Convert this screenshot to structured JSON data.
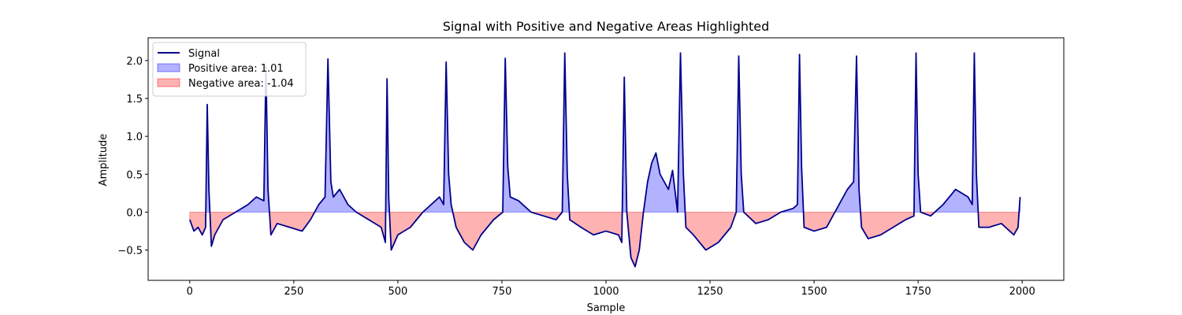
{
  "chart_data": {
    "type": "line",
    "title": "Signal with Positive and Negative Areas Highlighted",
    "xlabel": "Sample",
    "ylabel": "Amplitude",
    "xlim": [
      -100,
      2100
    ],
    "ylim": [
      -0.9,
      2.3
    ],
    "xticks": [
      0,
      250,
      500,
      750,
      1000,
      1250,
      1500,
      1750,
      2000
    ],
    "yticks": [
      -0.5,
      0.0,
      0.5,
      1.0,
      1.5,
      2.0
    ],
    "xtick_labels": [
      "0",
      "250",
      "500",
      "750",
      "1000",
      "1250",
      "1500",
      "1750",
      "2000"
    ],
    "ytick_labels": [
      "−0.5",
      "0.0",
      "0.5",
      "1.0",
      "1.5",
      "2.0"
    ],
    "grid": false,
    "legend_position": "top-left",
    "legend": [
      {
        "label": "Signal",
        "kind": "line",
        "color": "#00008b"
      },
      {
        "label": "Positive area: 1.01",
        "kind": "patch",
        "color": "#0000ff"
      },
      {
        "label": "Negative area: -1.04",
        "kind": "patch",
        "color": "#ff0000"
      }
    ],
    "series": {
      "name": "Signal",
      "color": "#00008b",
      "positive_fill": "#0000ff",
      "negative_fill": "#ff0000",
      "fill_alpha": 0.3,
      "x": [
        0,
        10,
        20,
        30,
        38,
        42,
        46,
        52,
        60,
        80,
        110,
        140,
        160,
        178,
        183,
        188,
        195,
        210,
        240,
        270,
        290,
        310,
        325,
        332,
        339,
        345,
        360,
        380,
        400,
        430,
        460,
        470,
        474,
        478,
        484,
        500,
        530,
        560,
        580,
        600,
        610,
        616,
        622,
        628,
        640,
        660,
        680,
        700,
        730,
        752,
        758,
        764,
        770,
        790,
        820,
        850,
        880,
        895,
        901,
        907,
        913,
        940,
        970,
        1000,
        1030,
        1038,
        1044,
        1050,
        1060,
        1070,
        1080,
        1090,
        1100,
        1110,
        1120,
        1130,
        1150,
        1160,
        1172,
        1179,
        1186,
        1192,
        1210,
        1240,
        1270,
        1300,
        1313,
        1319,
        1325,
        1331,
        1360,
        1390,
        1420,
        1450,
        1460,
        1465,
        1470,
        1476,
        1500,
        1530,
        1560,
        1580,
        1595,
        1602,
        1608,
        1614,
        1630,
        1660,
        1690,
        1720,
        1740,
        1745,
        1750,
        1756,
        1780,
        1810,
        1840,
        1870,
        1880,
        1885,
        1890,
        1896,
        1920,
        1950,
        1980,
        1990,
        1995
      ],
      "y": [
        -0.1,
        -0.25,
        -0.2,
        -0.3,
        -0.2,
        1.42,
        0.3,
        -0.45,
        -0.3,
        -0.1,
        0.0,
        0.1,
        0.2,
        0.15,
        1.92,
        0.3,
        -0.3,
        -0.15,
        -0.2,
        -0.25,
        -0.1,
        0.1,
        0.2,
        2.02,
        0.4,
        0.2,
        0.3,
        0.1,
        0.0,
        -0.1,
        -0.2,
        -0.4,
        1.76,
        0.2,
        -0.5,
        -0.3,
        -0.2,
        0.0,
        0.1,
        0.2,
        0.1,
        1.98,
        0.5,
        0.1,
        -0.2,
        -0.4,
        -0.5,
        -0.3,
        -0.1,
        0.0,
        2.03,
        0.6,
        0.2,
        0.15,
        0.0,
        -0.05,
        -0.1,
        0.0,
        2.1,
        0.5,
        -0.1,
        -0.2,
        -0.3,
        -0.25,
        -0.3,
        -0.4,
        1.78,
        0.0,
        -0.6,
        -0.72,
        -0.5,
        0.0,
        0.4,
        0.65,
        0.78,
        0.5,
        0.3,
        0.55,
        0.0,
        2.1,
        0.5,
        -0.2,
        -0.3,
        -0.5,
        -0.4,
        -0.2,
        0.0,
        2.06,
        0.5,
        0.0,
        -0.15,
        -0.1,
        0.0,
        0.05,
        0.1,
        2.08,
        0.6,
        -0.2,
        -0.25,
        -0.2,
        0.1,
        0.3,
        0.4,
        2.06,
        0.3,
        -0.2,
        -0.35,
        -0.3,
        -0.2,
        -0.1,
        -0.05,
        2.1,
        0.5,
        0.0,
        -0.05,
        0.1,
        0.3,
        0.2,
        0.1,
        2.1,
        0.5,
        -0.2,
        -0.2,
        -0.15,
        -0.3,
        -0.2,
        0.2
      ]
    }
  }
}
